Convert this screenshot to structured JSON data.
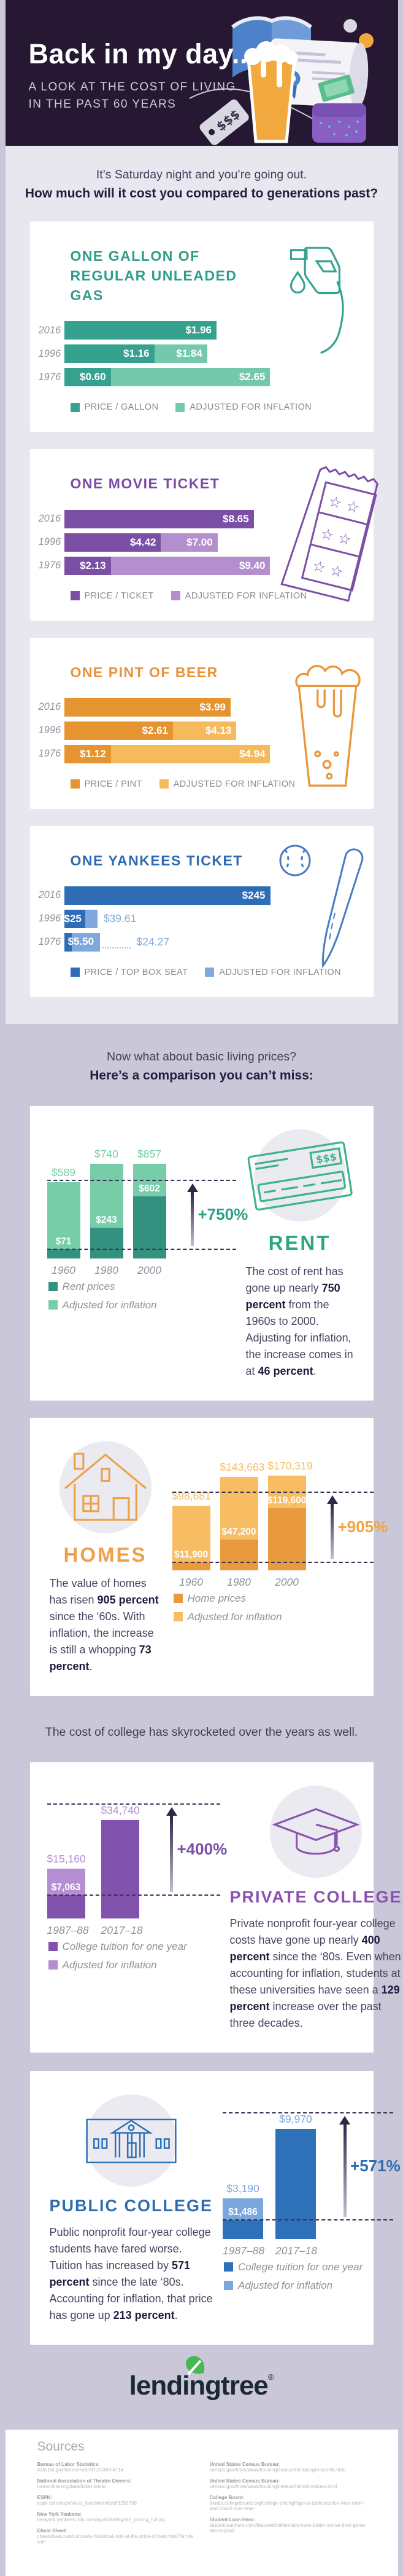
{
  "header": {
    "title": "Back in my day...",
    "subtitle_line1": "A LOOK AT THE COST OF LIVING",
    "subtitle_line2": "IN THE PAST 60 YEARS",
    "background": "#261833",
    "illustration_icons": [
      "open-book",
      "certificate-scroll",
      "beer-glass",
      "wallet-with-cash",
      "price-tag",
      "coins"
    ]
  },
  "intro": {
    "line1": "It’s Saturday night and you’re going out.",
    "line2": "How much will it cost you compared to generations past?"
  },
  "section_living": {
    "line1": "Now what about basic living prices?",
    "line2": "Here’s a comparison you can’t miss:"
  },
  "section_college": {
    "line1": "The cost of college has skyrocketed over the years as well."
  },
  "chart_data": [
    {
      "id": "gas",
      "type": "bar",
      "title": "ONE GALLON OF REGULAR UNLEADED GAS",
      "title_color": "#2f9e89",
      "icon": "gas-pump-icon",
      "categories": [
        "2016",
        "1996",
        "1976"
      ],
      "series": [
        {
          "name": "PRICE / GALLON",
          "values": [
            1.96,
            1.16,
            0.6
          ],
          "labels": [
            "$1.96",
            "$1.16",
            "$0.60"
          ],
          "color": "#35a28f"
        },
        {
          "name": "ADJUSTED FOR INFLATION",
          "values": [
            null,
            1.84,
            2.65
          ],
          "labels": [
            null,
            "$1.84",
            "$2.65"
          ],
          "color": "#74c9ad"
        }
      ],
      "xlim": [
        0,
        2.65
      ]
    },
    {
      "id": "movie",
      "type": "bar",
      "title": "ONE MOVIE TICKET",
      "title_color": "#7b4aa2",
      "icon": "movie-ticket-icon",
      "categories": [
        "2016",
        "1996",
        "1976"
      ],
      "series": [
        {
          "name": "PRICE / TICKET",
          "values": [
            8.65,
            4.42,
            2.13
          ],
          "labels": [
            "$8.65",
            "$4.42",
            "$2.13"
          ],
          "color": "#7c4fa6"
        },
        {
          "name": "ADJUSTED FOR INFLATION",
          "values": [
            null,
            7.0,
            9.4
          ],
          "labels": [
            null,
            "$7.00",
            "$9.40"
          ],
          "color": "#b38fce"
        }
      ],
      "xlim": [
        0,
        9.4
      ]
    },
    {
      "id": "beer",
      "type": "bar",
      "title": "ONE PINT OF BEER",
      "title_color": "#e8923a",
      "icon": "beer-glass-icon",
      "categories": [
        "2016",
        "1996",
        "1976"
      ],
      "series": [
        {
          "name": "PRICE / PINT",
          "values": [
            3.99,
            2.61,
            1.12
          ],
          "labels": [
            "$3.99",
            "$2.61",
            "$1.12"
          ],
          "color": "#e5942f"
        },
        {
          "name": "ADJUSTED FOR INFLATION",
          "values": [
            null,
            4.13,
            4.94
          ],
          "labels": [
            null,
            "$4.13",
            "$4.94"
          ],
          "color": "#f5ba5c"
        }
      ],
      "xlim": [
        0,
        4.94
      ]
    },
    {
      "id": "yankees",
      "type": "bar",
      "title": "ONE YANKEES TICKET",
      "title_color": "#2e6ab2",
      "icon": "baseball-and-bat-icon",
      "categories": [
        "2016",
        "1996",
        "1976"
      ],
      "series": [
        {
          "name": "PRICE / TOP BOX SEAT",
          "values": [
            245,
            25,
            5.5
          ],
          "labels": [
            "$245",
            "$25",
            "$5.50"
          ],
          "color": "#2e6cb5"
        },
        {
          "name": "ADJUSTED FOR INFLATION",
          "values": [
            null,
            39.61,
            24.27
          ],
          "labels": [
            null,
            "$39.61",
            "$24.27"
          ],
          "color": "#7fa9de"
        }
      ],
      "xlim": [
        0,
        245
      ],
      "outside_labels": [
        false,
        true,
        true
      ],
      "leader": [
        false,
        false,
        true
      ],
      "label_overflow": [
        false,
        false,
        true
      ]
    },
    {
      "id": "rent",
      "type": "column",
      "title": "RENT",
      "title_color": "#2ca87c",
      "icon": "paper-check-icon",
      "categories": [
        "1960",
        "1980",
        "2000"
      ],
      "series": [
        {
          "name": "Rent prices",
          "values": [
            71,
            243,
            602
          ],
          "labels": [
            "$71",
            "$243",
            "$602"
          ],
          "color": "#33917f"
        },
        {
          "name": "Adjusted for inflation",
          "values": [
            589,
            740,
            857
          ],
          "labels": [
            "$589",
            "$740",
            "$857"
          ],
          "color": "#77cda7"
        }
      ],
      "ylim": [
        0,
        857
      ],
      "annotation": "+750%",
      "annotation_color": "#2f9e85",
      "paragraph": [
        {
          "t": "The cost of rent has gone up nearly "
        },
        {
          "t": "750 percent",
          "b": true
        },
        {
          "t": " from the 1960s to 2000. Adjusting for inflation, the increase comes in at "
        },
        {
          "t": "46 percent",
          "b": true
        },
        {
          "t": "."
        }
      ]
    },
    {
      "id": "homes",
      "type": "column",
      "title": "HOMES",
      "title_color": "#efa04b",
      "icon": "house-icon",
      "categories": [
        "1960",
        "1980",
        "2000"
      ],
      "series": [
        {
          "name": "Home prices",
          "values": [
            11900,
            47200,
            119600
          ],
          "labels": [
            "$11,900",
            "$47,200",
            "$119,600"
          ],
          "color": "#e89a3d"
        },
        {
          "name": "Adjusted for inflation",
          "values": [
            98681,
            143663,
            170319
          ],
          "labels": [
            "$98,681",
            "$143,663",
            "$170,319"
          ],
          "color": "#f8bd63"
        }
      ],
      "ylim": [
        0,
        170319
      ],
      "annotation": "+905%",
      "annotation_color": "#f0a445",
      "paragraph": [
        {
          "t": "The value of homes has risen "
        },
        {
          "t": "905 percent",
          "b": true
        },
        {
          "t": " since the ‘60s. With inflation, the increase is still a whopping "
        },
        {
          "t": "73 percent",
          "b": true
        },
        {
          "t": "."
        }
      ]
    },
    {
      "id": "private-college",
      "type": "column",
      "title": "PRIVATE COLLEGE",
      "title_color": "#8a4fb0",
      "icon": "graduation-cap-icon",
      "categories": [
        "1987–88",
        "2017–18"
      ],
      "series": [
        {
          "name": "College tuition for one year",
          "values": [
            7063,
            34740
          ],
          "labels": [
            "$7,063",
            "$34,740"
          ],
          "color": "#8153ad"
        },
        {
          "name": "Adjusted for inflation",
          "values": [
            15160,
            null
          ],
          "labels": [
            "$15,160",
            "$34,740"
          ],
          "color": "#b48ed2"
        }
      ],
      "ylim": [
        0,
        34740
      ],
      "annotation": "+400%",
      "annotation_color": "#7b4fa5",
      "paragraph": [
        {
          "t": "Private nonprofit four-year college costs have gone up nearly "
        },
        {
          "t": "400 percent",
          "b": true
        },
        {
          "t": " since the ‘80s. Even when accounting for inflation, students at these universities have seen a "
        },
        {
          "t": "129 percent",
          "b": true
        },
        {
          "t": " increase over the past three decades."
        }
      ]
    },
    {
      "id": "public-college",
      "type": "column",
      "title": "PUBLIC COLLEGE",
      "title_color": "#2d6cb3",
      "icon": "college-building-icon",
      "categories": [
        "1987–88",
        "2017–18"
      ],
      "series": [
        {
          "name": "College tuition for one year",
          "values": [
            1486,
            9970
          ],
          "labels": [
            "$1,486",
            "$9,970"
          ],
          "color": "#2f71b8"
        },
        {
          "name": "Adjusted for inflation",
          "values": [
            3190,
            null
          ],
          "labels": [
            "$3,190",
            "$9,970"
          ],
          "color": "#7ba7dc"
        }
      ],
      "ylim": [
        0,
        9970
      ],
      "annotation": "+571%",
      "annotation_color": "#2d6cb3",
      "paragraph": [
        {
          "t": "Public nonprofit four-year college students have fared worse. Tuition has increased by "
        },
        {
          "t": "571 percent",
          "b": true
        },
        {
          "t": " since the late ‘80s. Accounting for inflation, that price has gone up "
        },
        {
          "t": "213 percent",
          "b": true
        },
        {
          "t": "."
        }
      ]
    }
  ],
  "footer": {
    "logo": "lendingtree",
    "registered": "®",
    "leaf_color": "#45b954"
  },
  "sources": {
    "heading": "Sources",
    "columns": [
      [
        {
          "name": "Bureau of Labor Statistics:",
          "url": "data.bls.gov/timeseries/APU000074714"
        },
        {
          "name": "National Association of Theatre Owners:",
          "url": "natoonline.org/data/ticket-price/"
        },
        {
          "name": "ESPN:",
          "url": "espn.com/espn/wire/_/section/mlb/id/3292799"
        },
        {
          "name": "New York Yankees:",
          "url": "newyork.yankees.mlb.com/nyy/ticketing/sth_pricing_full.jsp"
        },
        {
          "name": "Cheat Sheet:",
          "url": "cheatsheet.com/culture/a-historical-look-at-the-price-of-beer.html/?a=viewall"
        }
      ],
      [
        {
          "name": "United States Census Bureau:",
          "url": "census.gov/hhes/www/housing/census/historic/grossrents.html"
        },
        {
          "name": "United States Census Bureau:",
          "url": "census.gov/hhes/www/housing/census/historic/values.html"
        },
        {
          "name": "College Board:",
          "url": "trends.collegeboard.org/college-pricing/figures-tables/tuition-fees-room-and-board-over-time"
        },
        {
          "name": "Student Loan Hero:",
          "url": "studentloanhero.com/featured/millennials-have-better-worse-than-generations-past/"
        }
      ]
    ]
  }
}
